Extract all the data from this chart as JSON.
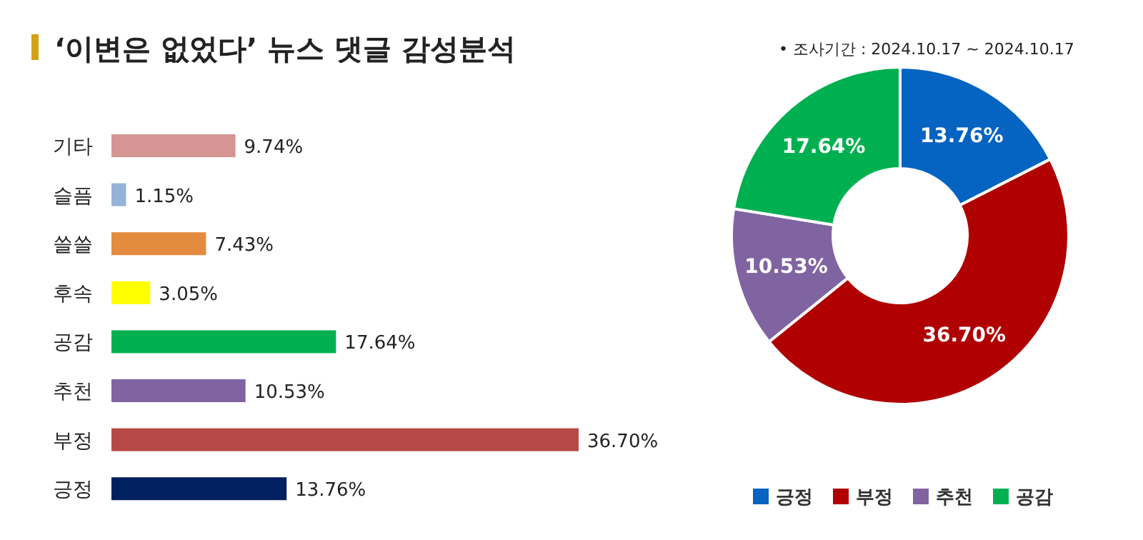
{
  "chart_data": [
    {
      "type": "bar",
      "orientation": "horizontal",
      "title": "‘이변은 없었다’ 뉴스 댓글 감성분석",
      "categories": [
        "기타",
        "슬픔",
        "쓸쓸",
        "후속",
        "공감",
        "추천",
        "부정",
        "긍정"
      ],
      "values": [
        9.74,
        1.15,
        7.43,
        3.05,
        17.64,
        10.53,
        36.7,
        13.76
      ],
      "value_labels": [
        "9.74%",
        "1.15%",
        "7.43%",
        "3.05%",
        "17.64%",
        "10.53%",
        "36.70%",
        "13.76%"
      ],
      "colors": [
        "#d59593",
        "#95b3d7",
        "#e38b3f",
        "#ffff00",
        "#00b050",
        "#8064a2",
        "#b64945",
        "#002060"
      ]
    },
    {
      "type": "donut",
      "annotations": [
        "•   조사기간 : 2024.10.17 ~ 2024.10.17"
      ],
      "categories": [
        "긍정",
        "부정",
        "추천",
        "공감"
      ],
      "values": [
        13.76,
        36.7,
        10.53,
        17.64
      ],
      "value_labels": [
        "13.76%",
        "36.70%",
        "10.53%",
        "17.64%"
      ],
      "colors": [
        "#0563c1",
        "#b00000",
        "#8064a2",
        "#00b050"
      ],
      "legend": "bottom"
    }
  ]
}
